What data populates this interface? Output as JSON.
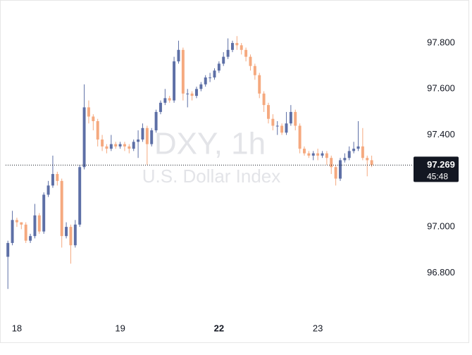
{
  "chart_data": {
    "type": "candlestick",
    "watermark": {
      "symbol": "DXY, 1h",
      "name": "U.S. Dollar Index"
    },
    "up_color": "#5d6fa6",
    "down_color": "#f5a97f",
    "xlim": [
      -0.5,
      90
    ],
    "ylim": [
      96.602,
      97.987
    ],
    "xticks": [
      {
        "value": 2,
        "label": "18"
      },
      {
        "value": 25,
        "label": "19"
      },
      {
        "value": 47,
        "label": "22"
      },
      {
        "value": 69,
        "label": "23"
      }
    ],
    "yticks": [
      {
        "value": 96.8,
        "label": "96.800"
      },
      {
        "value": 97.0,
        "label": "97.000"
      },
      {
        "value": 97.4,
        "label": "97.400"
      },
      {
        "value": 97.6,
        "label": "97.600"
      },
      {
        "value": 97.8,
        "label": "97.800"
      }
    ],
    "last_price": 97.269,
    "countdown": "45:48",
    "open": [
      96.87,
      96.93,
      97.03,
      97.02,
      97.01,
      96.94,
      96.96,
      97.05,
      96.98,
      97.14,
      97.18,
      97.23,
      97.2,
      96.96,
      97.0,
      96.92,
      97.01,
      97.26,
      97.52,
      97.48,
      97.46,
      97.38,
      97.35,
      97.34,
      97.36,
      97.35,
      97.36,
      97.35,
      97.34,
      97.37,
      97.38,
      97.43,
      97.36,
      97.42,
      97.5,
      97.54,
      97.56,
      97.55,
      97.72,
      97.77,
      97.58,
      97.58,
      97.57,
      97.6,
      97.62,
      97.65,
      97.65,
      97.68,
      97.71,
      97.74,
      97.77,
      97.8,
      97.79,
      97.77,
      97.74,
      97.7,
      97.66,
      97.58,
      97.53,
      97.47,
      97.44,
      97.44,
      97.41,
      97.45,
      97.5,
      97.44,
      97.34,
      97.32,
      97.31,
      97.32,
      97.31,
      97.32,
      97.3,
      97.26,
      97.21,
      97.29,
      97.3,
      97.33,
      97.34,
      97.35,
      97.3,
      97.29
    ],
    "high": [
      96.94,
      97.07,
      97.04,
      97.02,
      97.02,
      96.97,
      97.1,
      97.06,
      97.15,
      97.2,
      97.31,
      97.24,
      97.21,
      97.02,
      97.01,
      97.03,
      97.27,
      97.62,
      97.55,
      97.49,
      97.47,
      97.4,
      97.36,
      97.4,
      97.37,
      97.37,
      97.37,
      97.36,
      97.38,
      97.42,
      97.45,
      97.44,
      97.43,
      97.51,
      97.55,
      97.6,
      97.57,
      97.74,
      97.81,
      97.78,
      97.6,
      97.59,
      97.61,
      97.63,
      97.66,
      97.67,
      97.69,
      97.72,
      97.76,
      97.82,
      97.81,
      97.83,
      97.8,
      97.78,
      97.75,
      97.71,
      97.67,
      97.59,
      97.54,
      97.49,
      97.46,
      97.45,
      97.5,
      97.53,
      97.51,
      97.45,
      97.35,
      97.33,
      97.33,
      97.34,
      97.33,
      97.33,
      97.31,
      97.27,
      97.3,
      97.32,
      97.35,
      97.37,
      97.46,
      97.43,
      97.31,
      97.31
    ],
    "low": [
      96.73,
      96.92,
      97.0,
      96.99,
      96.93,
      96.93,
      96.95,
      96.97,
      96.97,
      97.13,
      97.17,
      97.18,
      96.91,
      96.95,
      96.84,
      96.91,
      97.0,
      97.25,
      97.45,
      97.42,
      97.35,
      97.33,
      97.32,
      97.33,
      97.34,
      97.34,
      97.33,
      97.32,
      97.33,
      97.3,
      97.37,
      97.27,
      97.35,
      97.41,
      97.49,
      97.53,
      97.54,
      97.54,
      97.71,
      97.55,
      97.52,
      97.55,
      97.56,
      97.59,
      97.61,
      97.63,
      97.64,
      97.67,
      97.7,
      97.73,
      97.76,
      97.77,
      97.75,
      97.72,
      97.68,
      97.64,
      97.56,
      97.5,
      97.45,
      97.42,
      97.4,
      97.4,
      97.4,
      97.44,
      97.42,
      97.32,
      97.31,
      97.3,
      97.29,
      97.29,
      97.3,
      97.27,
      97.23,
      97.18,
      97.2,
      97.28,
      97.29,
      97.32,
      97.33,
      97.29,
      97.22,
      97.26
    ],
    "close": [
      96.93,
      97.03,
      97.02,
      97.01,
      96.94,
      96.96,
      97.05,
      96.98,
      97.14,
      97.18,
      97.23,
      97.2,
      96.96,
      97.0,
      96.92,
      97.01,
      97.26,
      97.52,
      97.48,
      97.46,
      97.38,
      97.35,
      97.34,
      97.36,
      97.35,
      97.36,
      97.35,
      97.34,
      97.37,
      97.38,
      97.43,
      97.36,
      97.42,
      97.5,
      97.54,
      97.56,
      97.55,
      97.72,
      97.77,
      97.58,
      97.58,
      97.57,
      97.6,
      97.62,
      97.65,
      97.65,
      97.68,
      97.71,
      97.74,
      97.77,
      97.8,
      97.79,
      97.77,
      97.74,
      97.7,
      97.66,
      97.58,
      97.53,
      97.47,
      97.44,
      97.44,
      97.41,
      97.45,
      97.5,
      97.44,
      97.34,
      97.32,
      97.31,
      97.32,
      97.31,
      97.32,
      97.3,
      97.26,
      97.21,
      97.29,
      97.3,
      97.33,
      97.34,
      97.35,
      97.3,
      97.29,
      97.269
    ]
  }
}
